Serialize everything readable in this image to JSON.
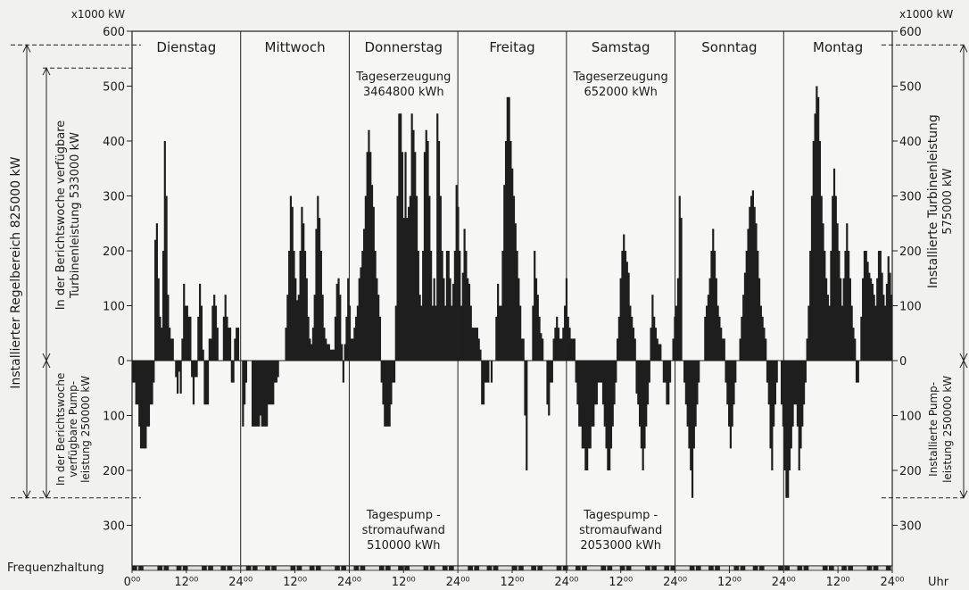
{
  "chart_data": {
    "type": "bar",
    "unit_label_left": "x1000 kW",
    "unit_label_right": "x1000 kW",
    "x_unit": "Uhr",
    "ylim": [
      -370,
      600
    ],
    "y_ticks_upper": [
      0,
      100,
      200,
      300,
      400,
      500,
      600
    ],
    "y_ticks_lower": [
      100,
      200,
      300
    ],
    "x_tick_labels": [
      "0⁰⁰",
      "12⁰⁰",
      "24⁰⁰",
      "12⁰⁰",
      "24⁰⁰",
      "12⁰⁰",
      "24⁰⁰",
      "12⁰⁰",
      "24⁰⁰",
      "12⁰⁰",
      "24⁰⁰",
      "12⁰⁰",
      "24⁰⁰",
      "12⁰⁰",
      "24⁰⁰"
    ],
    "days": [
      "Dienstag",
      "Mittwoch",
      "Donnerstag",
      "Freitag",
      "Samstag",
      "Sonntag",
      "Montag"
    ],
    "annotations": {
      "donnerstag_gen": [
        "Tageserzeugung",
        "3464800 kWh"
      ],
      "donnerstag_pump": [
        "Tagespump -",
        "stromaufwand",
        "510000 kWh"
      ],
      "samstag_gen": [
        "Tageserzeugung",
        "652000 kWh"
      ],
      "samstag_pump": [
        "Tagespump -",
        "stromaufwand",
        "2053000 kWh"
      ]
    },
    "left_labels": {
      "installed_range": "Installierter  Regelbereich  825000 kW",
      "turbine_week": [
        "In der Berichtswoche verfügbare",
        "Turbinenleistung  533000 kW"
      ],
      "pump_week": [
        "In der Berichtswoche",
        "verfügbare Pump-",
        "leistung  250000 kW"
      ]
    },
    "right_labels": {
      "turbine_installed": [
        "Installierte  Turbinenleistung",
        "575000 kW"
      ],
      "pump_installed": [
        "Installierte  Pump-",
        "leistung  250000 kW"
      ]
    },
    "reference_levels": {
      "installed_turbine": 575,
      "week_turbine": 533,
      "installed_pump": 250,
      "week_pump": 250
    },
    "frequency_label": "Frequenzhaltung",
    "values": [
      -40,
      -40,
      -80,
      -80,
      -120,
      -160,
      -160,
      -160,
      -160,
      -120,
      -120,
      -80,
      -80,
      -40,
      220,
      250,
      150,
      80,
      60,
      200,
      400,
      300,
      120,
      60,
      40,
      40,
      0,
      -30,
      -60,
      -20,
      -60,
      40,
      140,
      100,
      100,
      80,
      80,
      -30,
      -80,
      -30,
      -30,
      80,
      140,
      100,
      20,
      -80,
      -80,
      -80,
      40,
      40,
      100,
      120,
      100,
      60,
      0,
      0,
      0,
      80,
      120,
      80,
      60,
      60,
      -40,
      -40,
      40,
      60,
      60,
      0,
      0,
      -120,
      -80,
      -40,
      0,
      0,
      0,
      -120,
      -120,
      -120,
      -120,
      -120,
      -100,
      -120,
      -120,
      -120,
      -120,
      -80,
      -80,
      -80,
      -80,
      -40,
      -40,
      -30,
      0,
      0,
      0,
      0,
      60,
      120,
      200,
      300,
      280,
      200,
      150,
      110,
      120,
      200,
      280,
      250,
      200,
      150,
      80,
      40,
      30,
      60,
      120,
      240,
      300,
      260,
      200,
      120,
      60,
      40,
      30,
      30,
      20,
      20,
      20,
      80,
      140,
      150,
      120,
      30,
      -40,
      30,
      80,
      150,
      100,
      40,
      40,
      60,
      80,
      100,
      150,
      170,
      200,
      240,
      300,
      380,
      420,
      380,
      320,
      280,
      200,
      150,
      120,
      80,
      -40,
      -80,
      -120,
      -120,
      -120,
      -120,
      -80,
      -40,
      -40,
      100,
      300,
      450,
      450,
      380,
      260,
      380,
      260,
      280,
      300,
      450,
      420,
      380,
      300,
      200,
      120,
      100,
      200,
      380,
      420,
      400,
      300,
      200,
      100,
      150,
      100,
      450,
      400,
      300,
      200,
      150,
      100,
      200,
      200,
      150,
      100,
      140,
      200,
      320,
      280,
      200,
      100,
      160,
      240,
      200,
      150,
      140,
      100,
      60,
      60,
      60,
      60,
      40,
      20,
      -80,
      -80,
      -40,
      -40,
      -40,
      0,
      -40,
      0,
      0,
      80,
      140,
      100,
      100,
      200,
      320,
      400,
      480,
      480,
      400,
      350,
      300,
      250,
      200,
      150,
      100,
      40,
      40,
      -100,
      -200,
      0,
      0,
      0,
      100,
      200,
      150,
      120,
      80,
      50,
      40,
      0,
      0,
      -80,
      -100,
      -40,
      -40,
      40,
      60,
      80,
      60,
      40,
      40,
      60,
      100,
      150,
      80,
      60,
      40,
      40,
      40,
      -40,
      -80,
      -120,
      -120,
      -160,
      -160,
      -200,
      -200,
      -160,
      -160,
      -120,
      -120,
      -80,
      -80,
      -40,
      -40,
      -40,
      -80,
      -120,
      -160,
      -200,
      -200,
      -160,
      -120,
      -80,
      -40,
      40,
      80,
      150,
      200,
      230,
      200,
      180,
      160,
      100,
      80,
      60,
      40,
      -60,
      -80,
      -120,
      -160,
      -200,
      -160,
      -120,
      -80,
      -40,
      60,
      120,
      80,
      60,
      40,
      30,
      30,
      0,
      -40,
      -40,
      -80,
      -80,
      -40,
      0,
      40,
      80,
      100,
      150,
      300,
      260,
      0,
      -40,
      -80,
      -120,
      -160,
      -200,
      -250,
      -160,
      -120,
      -80,
      -40,
      0,
      0,
      0,
      80,
      100,
      120,
      150,
      200,
      240,
      200,
      150,
      100,
      80,
      60,
      40,
      40,
      -40,
      -80,
      -120,
      -160,
      -120,
      -80,
      -40,
      0,
      0,
      40,
      80,
      120,
      160,
      200,
      240,
      280,
      300,
      310,
      280,
      250,
      200,
      150,
      100,
      80,
      60,
      40,
      -40,
      -80,
      -160,
      -200,
      -120,
      -80,
      -40,
      0,
      0,
      -80,
      -120,
      -200,
      -250,
      -250,
      -200,
      -160,
      -120,
      -80,
      -80,
      -120,
      -200,
      -160,
      -120,
      -80,
      -40,
      40,
      100,
      200,
      300,
      400,
      450,
      500,
      480,
      400,
      300,
      250,
      200,
      150,
      120,
      100,
      200,
      300,
      350,
      300,
      250,
      200,
      150,
      100,
      150,
      200,
      250,
      200,
      150,
      100,
      60,
      40,
      -40,
      -40,
      0,
      80,
      150,
      200,
      200,
      180,
      160,
      150,
      140,
      120,
      100,
      150,
      200,
      200,
      160,
      120,
      100,
      140,
      190,
      160,
      120
    ]
  }
}
